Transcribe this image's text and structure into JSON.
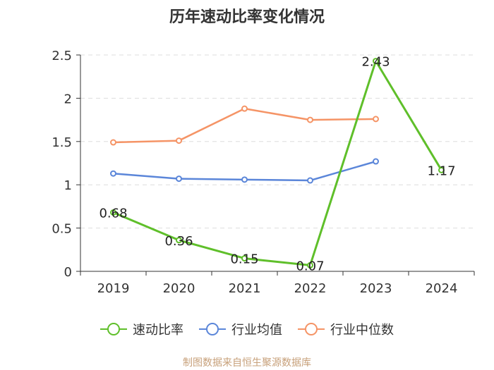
{
  "chart_data": {
    "type": "line",
    "title": "历年速动比率变化情况",
    "categories": [
      "2019",
      "2020",
      "2021",
      "2022",
      "2023",
      "2024"
    ],
    "y_ticks": [
      "0",
      "0.5",
      "1",
      "1.5",
      "2",
      "2.5"
    ],
    "ylim": [
      0,
      2.5
    ],
    "grid": true,
    "legend_position": "bottom",
    "series": [
      {
        "name": "速动比率",
        "color": "#5fbf2a",
        "values": [
          0.68,
          0.36,
          0.15,
          0.07,
          2.43,
          1.17
        ],
        "labels": [
          "0.68",
          "0.36",
          "0.15",
          "0.07",
          "2.43",
          "1.17"
        ]
      },
      {
        "name": "行业均值",
        "color": "#5b86d9",
        "values": [
          1.13,
          1.07,
          1.06,
          1.05,
          1.27,
          null
        ]
      },
      {
        "name": "行业中位数",
        "color": "#f59466",
        "values": [
          1.49,
          1.51,
          1.88,
          1.75,
          1.76,
          null
        ]
      }
    ]
  },
  "source": "制图数据来自恒生聚源数据库"
}
